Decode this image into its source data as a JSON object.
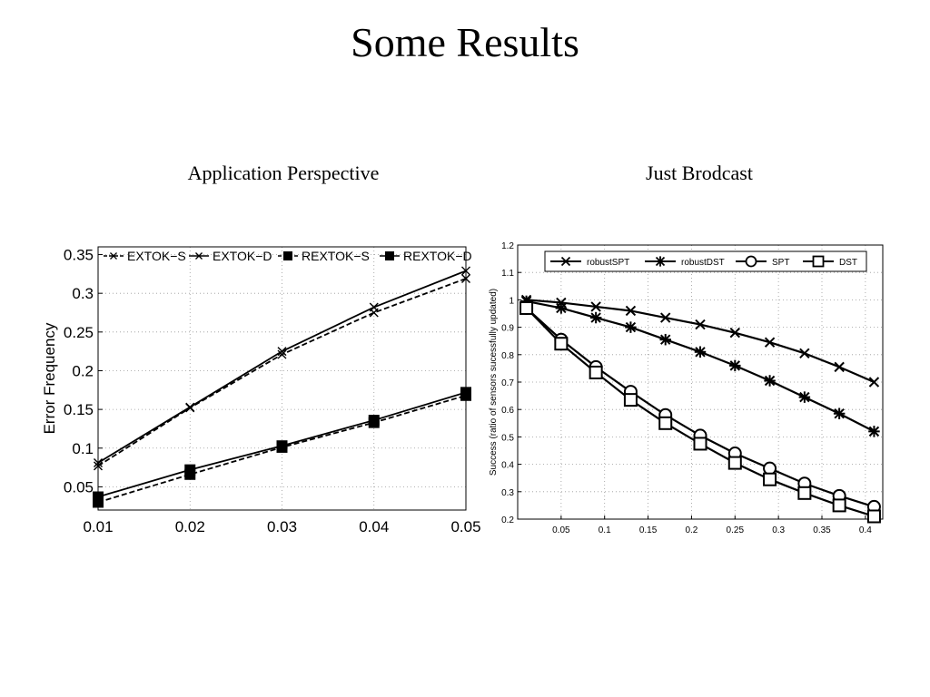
{
  "slide": {
    "title": "Some Results",
    "subtitle_left": "Application Perspective",
    "subtitle_right": "Just Brodcast"
  },
  "chart_data": [
    {
      "type": "line",
      "title": "",
      "xlabel": "",
      "ylabel": "Error Frequency",
      "x": [
        0.01,
        0.02,
        0.03,
        0.04,
        0.05
      ],
      "x_ticks": [
        "0.01",
        "0.02",
        "0.03",
        "0.04",
        "0.05"
      ],
      "y_ticks": [
        "0.05",
        "0.1",
        "0.15",
        "0.2",
        "0.25",
        "0.3",
        "0.35"
      ],
      "xlim": [
        0.01,
        0.05
      ],
      "ylim": [
        0.02,
        0.36
      ],
      "grid": true,
      "legend": "top",
      "series": [
        {
          "name": "EXTOK−S",
          "marker": "x",
          "dash": "dashed",
          "values": [
            0.077,
            0.152,
            0.221,
            0.275,
            0.319
          ]
        },
        {
          "name": "EXTOK−D",
          "marker": "x",
          "dash": "solid",
          "values": [
            0.081,
            0.153,
            0.225,
            0.282,
            0.329
          ]
        },
        {
          "name": "REXTOK−S",
          "marker": "square-filled",
          "dash": "dashed",
          "values": [
            0.03,
            0.066,
            0.101,
            0.133,
            0.168
          ]
        },
        {
          "name": "REXTOK−D",
          "marker": "square-filled",
          "dash": "solid",
          "values": [
            0.037,
            0.072,
            0.103,
            0.136,
            0.172
          ]
        }
      ]
    },
    {
      "type": "line",
      "title": "",
      "xlabel": "",
      "ylabel": "Success (ratio of sensors sucessfully updated)",
      "x": [
        0.01,
        0.05,
        0.09,
        0.13,
        0.17,
        0.21,
        0.25,
        0.29,
        0.33,
        0.37,
        0.41
      ],
      "x_ticks": [
        "0.05",
        "0.1",
        "0.15",
        "0.2",
        "0.25",
        "0.3",
        "0.35",
        "0.4"
      ],
      "y_ticks": [
        "0.2",
        "0.3",
        "0.4",
        "0.5",
        "0.6",
        "0.7",
        "0.8",
        "0.9",
        "1",
        "1.1",
        "1.2"
      ],
      "xlim": [
        0.0,
        0.42
      ],
      "ylim": [
        0.2,
        1.2
      ],
      "grid": true,
      "legend": "top",
      "series": [
        {
          "name": "robustSPT",
          "marker": "x",
          "values": [
            1.0,
            0.99,
            0.975,
            0.96,
            0.935,
            0.91,
            0.88,
            0.845,
            0.805,
            0.755,
            0.7
          ]
        },
        {
          "name": "robustDST",
          "marker": "asterisk",
          "values": [
            0.995,
            0.97,
            0.935,
            0.9,
            0.855,
            0.81,
            0.76,
            0.705,
            0.645,
            0.585,
            0.52
          ]
        },
        {
          "name": "SPT",
          "marker": "circle",
          "values": [
            0.97,
            0.855,
            0.755,
            0.665,
            0.58,
            0.505,
            0.44,
            0.385,
            0.33,
            0.285,
            0.245
          ]
        },
        {
          "name": "DST",
          "marker": "square",
          "values": [
            0.97,
            0.84,
            0.735,
            0.635,
            0.55,
            0.475,
            0.405,
            0.345,
            0.295,
            0.25,
            0.21
          ]
        }
      ]
    }
  ]
}
